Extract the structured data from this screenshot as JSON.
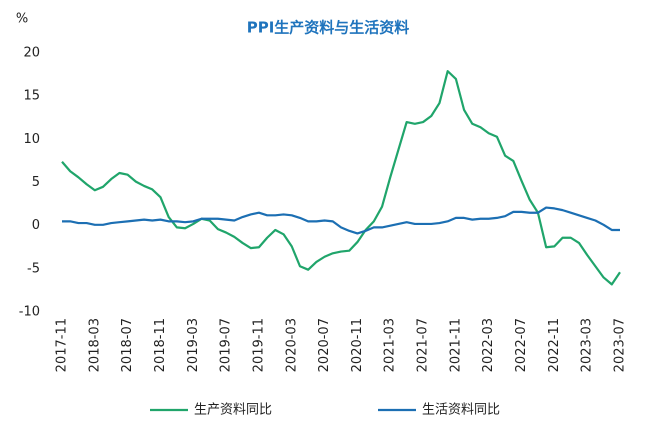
{
  "chart_data": {
    "type": "line",
    "title": "PPI生产资料与生活资料",
    "ylabel": "%",
    "categories": [
      "2017-11",
      null,
      null,
      null,
      "2018-03",
      null,
      null,
      null,
      "2018-07",
      null,
      null,
      null,
      "2018-11",
      null,
      null,
      null,
      "2019-03",
      null,
      null,
      null,
      "2019-07",
      null,
      null,
      null,
      "2019-11",
      null,
      null,
      null,
      "2020-03",
      null,
      null,
      null,
      "2020-07",
      null,
      null,
      null,
      "2020-11",
      null,
      null,
      null,
      "2021-03",
      null,
      null,
      null,
      "2021-07",
      null,
      null,
      null,
      "2021-11",
      null,
      null,
      null,
      "2022-03",
      null,
      null,
      null,
      "2022-07",
      null,
      null,
      null,
      "2022-11",
      null,
      null,
      null,
      "2023-03",
      null,
      null,
      null,
      "2023-07"
    ],
    "series": [
      {
        "name": "生产资料同比",
        "color": "#20a56b",
        "values": [
          7.4,
          6.3,
          5.6,
          4.8,
          4.1,
          4.5,
          5.4,
          6.1,
          5.9,
          5.1,
          4.6,
          4.2,
          3.3,
          1.0,
          -0.2,
          -0.3,
          0.2,
          0.8,
          0.6,
          -0.4,
          -0.8,
          -1.3,
          -2.0,
          -2.6,
          -2.5,
          -1.4,
          -0.5,
          -1.0,
          -2.4,
          -4.7,
          -5.1,
          -4.2,
          -3.6,
          -3.2,
          -3.0,
          -2.9,
          -1.9,
          -0.5,
          0.5,
          2.2,
          5.6,
          8.8,
          12.0,
          11.8,
          12.0,
          12.7,
          14.2,
          17.9,
          17.0,
          13.4,
          11.8,
          11.4,
          10.7,
          10.3,
          8.1,
          7.5,
          5.2,
          3.0,
          1.5,
          -2.5,
          -2.4,
          -1.4,
          -1.4,
          -2.0,
          -3.4,
          -4.7,
          -6.0,
          -6.8,
          -5.4
        ]
      },
      {
        "name": "生活资料同比",
        "color": "#1c6fb3",
        "values": [
          0.5,
          0.5,
          0.3,
          0.3,
          0.1,
          0.1,
          0.3,
          0.4,
          0.5,
          0.6,
          0.7,
          0.6,
          0.7,
          0.5,
          0.5,
          0.4,
          0.5,
          0.8,
          0.8,
          0.8,
          0.7,
          0.6,
          1.0,
          1.3,
          1.5,
          1.2,
          1.2,
          1.3,
          1.2,
          0.9,
          0.5,
          0.5,
          0.6,
          0.5,
          -0.2,
          -0.6,
          -0.9,
          -0.6,
          -0.2,
          -0.2,
          0.0,
          0.2,
          0.4,
          0.2,
          0.2,
          0.2,
          0.3,
          0.5,
          0.9,
          0.9,
          0.7,
          0.8,
          0.8,
          0.9,
          1.1,
          1.6,
          1.6,
          1.5,
          1.5,
          2.1,
          2.0,
          1.8,
          1.5,
          1.2,
          0.9,
          0.6,
          0.1,
          -0.5,
          -0.5
        ]
      }
    ],
    "ylim": [
      -10,
      20
    ],
    "yticks": [
      -10,
      -5,
      0,
      5,
      10,
      15,
      20
    ],
    "grid": false
  }
}
